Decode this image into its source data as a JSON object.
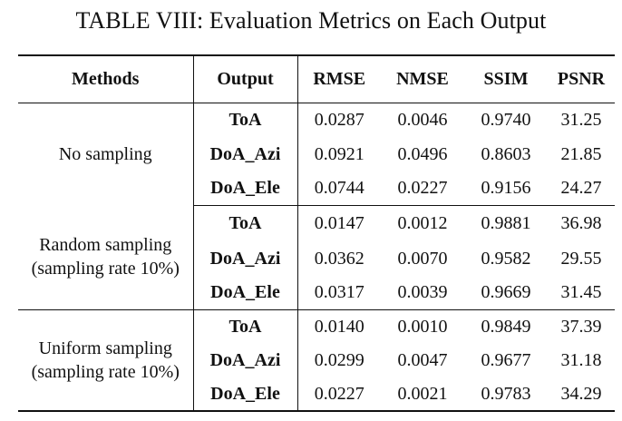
{
  "caption": "TABLE VIII: Evaluation Metrics on Each Output",
  "columns": {
    "methods": "Methods",
    "output": "Output",
    "rmse": "RMSE",
    "nmse": "NMSE",
    "ssim": "SSIM",
    "psnr": "PSNR"
  },
  "groups": [
    {
      "method_line1": "No sampling",
      "method_line2": "",
      "rows": [
        {
          "output": "ToA",
          "rmse": "0.0287",
          "nmse": "0.0046",
          "ssim": "0.9740",
          "psnr": "31.25"
        },
        {
          "output": "DoA_Azi",
          "rmse": "0.0921",
          "nmse": "0.0496",
          "ssim": "0.8603",
          "psnr": "21.85"
        },
        {
          "output": "DoA_Ele",
          "rmse": "0.0744",
          "nmse": "0.0227",
          "ssim": "0.9156",
          "psnr": "24.27"
        }
      ]
    },
    {
      "method_line1": "Random sampling",
      "method_line2": "(sampling rate 10%)",
      "rows": [
        {
          "output": "ToA",
          "rmse": "0.0147",
          "nmse": "0.0012",
          "ssim": "0.9881",
          "psnr": "36.98"
        },
        {
          "output": "DoA_Azi",
          "rmse": "0.0362",
          "nmse": "0.0070",
          "ssim": "0.9582",
          "psnr": "29.55"
        },
        {
          "output": "DoA_Ele",
          "rmse": "0.0317",
          "nmse": "0.0039",
          "ssim": "0.9669",
          "psnr": "31.45"
        }
      ]
    },
    {
      "method_line1": "Uniform sampling",
      "method_line2": "(sampling rate 10%)",
      "rows": [
        {
          "output": "ToA",
          "rmse": "0.0140",
          "nmse": "0.0010",
          "ssim": "0.9849",
          "psnr": "37.39"
        },
        {
          "output": "DoA_Azi",
          "rmse": "0.0299",
          "nmse": "0.0047",
          "ssim": "0.9677",
          "psnr": "31.18"
        },
        {
          "output": "DoA_Ele",
          "rmse": "0.0227",
          "nmse": "0.0021",
          "ssim": "0.9783",
          "psnr": "34.29"
        }
      ]
    }
  ]
}
